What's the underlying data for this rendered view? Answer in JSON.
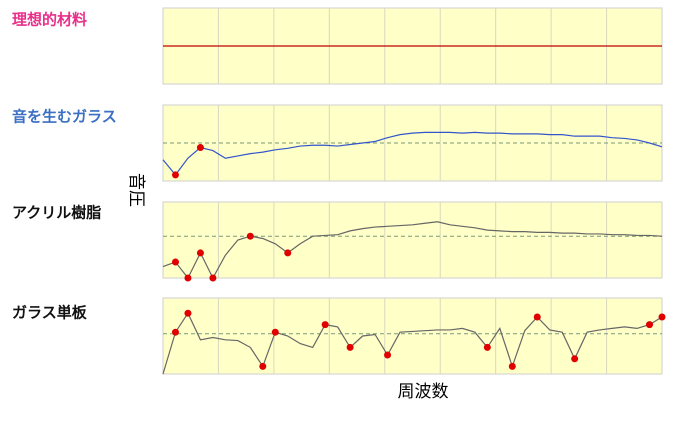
{
  "chart_data": [
    {
      "type": "line",
      "title": "理想的材料",
      "title_color": "#e8308a",
      "color": "#c00000",
      "ylim": [
        0,
        100
      ],
      "values": [
        50,
        50,
        50,
        50,
        50,
        50,
        50,
        50,
        50,
        50,
        50,
        50,
        50,
        50,
        50,
        50,
        50,
        50,
        50,
        50,
        50,
        50,
        50,
        50,
        50,
        50,
        50,
        50,
        50,
        50,
        50,
        50,
        50,
        50,
        50,
        50,
        50,
        50,
        50,
        50,
        50
      ],
      "markers": []
    },
    {
      "type": "line",
      "title": "音を生むガラス",
      "title_color": "#3a6fc4",
      "color": "#3355cc",
      "ylim": [
        0,
        100
      ],
      "reference": 50,
      "values": [
        28,
        8,
        30,
        44,
        40,
        30,
        33,
        36,
        38,
        41,
        43,
        46,
        47,
        47,
        46,
        48,
        50,
        52,
        57,
        61,
        63,
        64,
        64,
        64,
        63,
        64,
        63,
        63,
        62,
        62,
        62,
        61,
        61,
        59,
        59,
        59,
        57,
        56,
        54,
        50,
        45
      ],
      "markers": [
        1,
        3
      ]
    },
    {
      "type": "line",
      "title": "アクリル樹脂",
      "title_color": "#111111",
      "color": "#666666",
      "ylim": [
        0,
        100
      ],
      "reference": 55,
      "values": [
        15,
        21,
        0,
        33,
        0,
        30,
        50,
        55,
        52,
        45,
        33,
        45,
        55,
        56,
        57,
        62,
        65,
        67,
        68,
        69,
        70,
        72,
        74,
        70,
        68,
        66,
        63,
        62,
        61,
        61,
        60,
        60,
        59,
        59,
        58,
        58,
        57,
        57,
        56,
        56,
        55
      ],
      "markers": [
        1,
        2,
        3,
        4,
        7,
        10
      ]
    },
    {
      "type": "line",
      "title": "ガラス単板",
      "title_color": "#111111",
      "color": "#666666",
      "ylim": [
        0,
        100
      ],
      "reference": 53,
      "values": [
        0,
        55,
        80,
        45,
        48,
        45,
        44,
        35,
        10,
        55,
        50,
        40,
        35,
        65,
        62,
        35,
        50,
        52,
        25,
        55,
        56,
        57,
        58,
        58,
        60,
        55,
        35,
        60,
        10,
        57,
        75,
        58,
        55,
        20,
        55,
        58,
        60,
        62,
        60,
        65,
        75
      ],
      "markers": [
        1,
        2,
        8,
        9,
        13,
        15,
        18,
        26,
        28,
        30,
        33,
        39,
        40
      ]
    }
  ],
  "axis_labels": {
    "y": "音圧",
    "x": "周波数"
  }
}
